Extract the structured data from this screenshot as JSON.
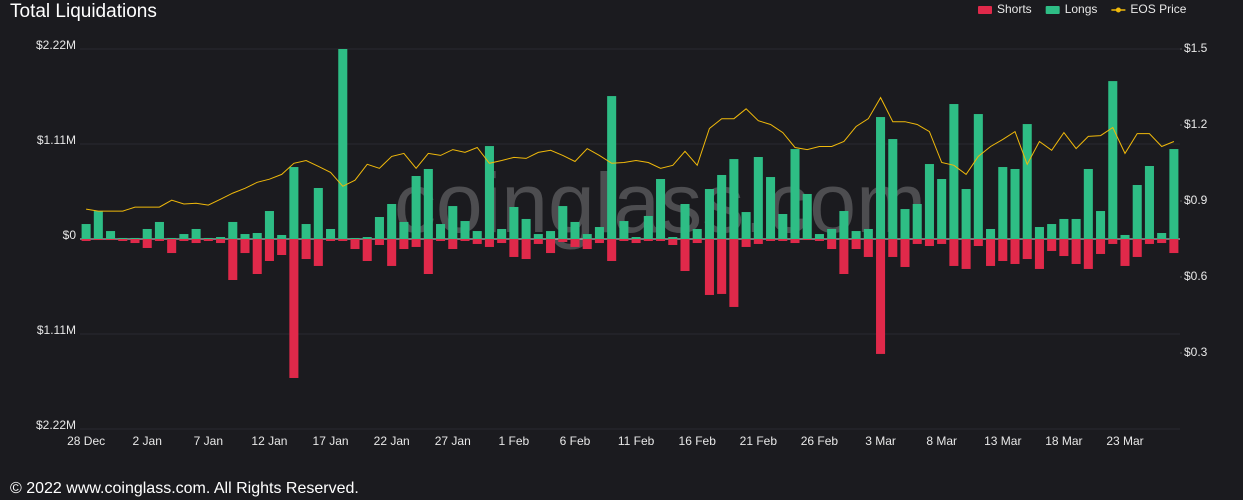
{
  "chart_data": {
    "type": "bar",
    "title": "Total Liquidations",
    "watermark": "coinglass.com",
    "footer": "© 2022 www.coinglass.com. All Rights Reserved.",
    "categories": [
      "28 Dec",
      null,
      null,
      null,
      null,
      "2 Jan",
      null,
      null,
      null,
      null,
      "7 Jan",
      null,
      null,
      null,
      null,
      "12 Jan",
      null,
      null,
      null,
      null,
      "17 Jan",
      null,
      null,
      null,
      null,
      "22 Jan",
      null,
      null,
      null,
      null,
      "27 Jan",
      null,
      null,
      null,
      null,
      "1 Feb",
      null,
      null,
      null,
      null,
      "6 Feb",
      null,
      null,
      null,
      null,
      "11 Feb",
      null,
      null,
      null,
      null,
      "16 Feb",
      null,
      null,
      null,
      null,
      "21 Feb",
      null,
      null,
      null,
      null,
      "26 Feb",
      null,
      null,
      null,
      null,
      "3 Mar",
      null,
      null,
      null,
      null,
      "8 Mar",
      null,
      null,
      null,
      null,
      "13 Mar",
      null,
      null,
      null,
      null,
      "18 Mar",
      null,
      null,
      null,
      null,
      "23 Mar",
      null,
      null,
      null,
      null
    ],
    "series": [
      {
        "name": "Shorts",
        "type": "bar",
        "color": "#e0294a",
        "values": [
          -0.023,
          -0.012,
          -0.012,
          -0.023,
          -0.047,
          -0.105,
          -0.023,
          -0.164,
          -0.023,
          -0.047,
          -0.023,
          -0.047,
          -0.479,
          -0.164,
          -0.409,
          -0.257,
          -0.187,
          -1.624,
          -0.234,
          -0.315,
          -0.023,
          -0.023,
          -0.117,
          -0.257,
          -0.07,
          -0.315,
          -0.117,
          -0.093,
          -0.409,
          -0.023,
          -0.117,
          -0.023,
          -0.058,
          -0.093,
          -0.047,
          -0.21,
          -0.234,
          -0.058,
          -0.164,
          -0.035,
          -0.093,
          -0.117,
          -0.047,
          -0.257,
          -0.023,
          -0.047,
          -0.023,
          -0.023,
          -0.07,
          -0.374,
          -0.047,
          -0.654,
          -0.642,
          -0.794,
          -0.093,
          -0.058,
          -0.023,
          -0.023,
          -0.047,
          -0.012,
          -0.023,
          -0.117,
          -0.409,
          -0.117,
          -0.21,
          -1.343,
          -0.21,
          -0.327,
          -0.058,
          -0.082,
          -0.058,
          -0.315,
          -0.35,
          -0.082,
          -0.315,
          -0.257,
          -0.292,
          -0.234,
          -0.35,
          -0.14,
          -0.199,
          -0.292,
          -0.35,
          -0.175,
          -0.058,
          -0.315,
          -0.21,
          -0.058,
          -0.047,
          -0.164
        ]
      },
      {
        "name": "Longs",
        "type": "bar",
        "color": "#2ebd85",
        "values": [
          0.175,
          0.327,
          0.093,
          0.012,
          0.012,
          0.117,
          0.199,
          0.012,
          0.058,
          0.117,
          0.012,
          0.023,
          0.199,
          0.058,
          0.07,
          0.327,
          0.047,
          0.841,
          0.175,
          0.596,
          0.117,
          2.22,
          0.012,
          0.023,
          0.257,
          0.409,
          0.199,
          0.736,
          0.818,
          0.175,
          0.385,
          0.21,
          0.093,
          1.086,
          0.117,
          0.374,
          0.234,
          0.058,
          0.093,
          0.385,
          0.199,
          0.058,
          0.14,
          1.67,
          0.21,
          0.023,
          0.269,
          0.701,
          0.023,
          0.409,
          0.117,
          0.584,
          0.748,
          0.934,
          0.315,
          0.958,
          0.724,
          0.292,
          1.051,
          0.526,
          0.058,
          0.117,
          0.327,
          0.093,
          0.117,
          1.425,
          1.168,
          0.35,
          0.409,
          0.876,
          0.701,
          1.577,
          0.584,
          1.46,
          0.117,
          0.841,
          0.818,
          1.343,
          0.14,
          0.175,
          0.234,
          0.234,
          0.818,
          0.327,
          1.845,
          0.047,
          0.631,
          0.853,
          0.07,
          1.051
        ]
      },
      {
        "name": "EOS Price",
        "type": "line",
        "axis": "y2",
        "color": "#f0b90b",
        "values": [
          0.868,
          0.86,
          0.86,
          0.86,
          0.876,
          0.876,
          0.876,
          0.903,
          0.888,
          0.891,
          0.884,
          0.907,
          0.931,
          0.95,
          0.974,
          0.986,
          1.005,
          1.049,
          1.06,
          1.037,
          1.013,
          0.958,
          0.982,
          1.045,
          1.029,
          1.076,
          1.088,
          1.029,
          1.088,
          1.08,
          1.103,
          1.092,
          1.111,
          1.049,
          1.06,
          1.072,
          1.068,
          1.092,
          1.1,
          1.08,
          1.056,
          1.107,
          1.08,
          1.049,
          1.052,
          1.06,
          1.052,
          1.029,
          1.041,
          1.096,
          1.041,
          1.186,
          1.225,
          1.225,
          1.264,
          1.217,
          1.202,
          1.17,
          1.111,
          1.103,
          1.115,
          1.115,
          1.135,
          1.194,
          1.225,
          1.308,
          1.213,
          1.213,
          1.202,
          1.174,
          1.052,
          1.041,
          1.005,
          1.076,
          1.115,
          1.143,
          1.174,
          1.045,
          1.135,
          1.1,
          1.17,
          1.107,
          1.155,
          1.158,
          1.19,
          1.088,
          1.166,
          1.166,
          1.115,
          1.135
        ]
      }
    ],
    "ylim": [
      -2.22,
      2.22
    ],
    "yticks": [
      {
        "value": -2.22,
        "label": "$2.22M"
      },
      {
        "value": -1.11,
        "label": "$1.11M"
      },
      {
        "value": 0,
        "label": "$0"
      },
      {
        "value": 1.11,
        "label": "$1.11M"
      },
      {
        "value": 2.22,
        "label": "$2.22M"
      }
    ],
    "y2lim": [
      0,
      1.5
    ],
    "y2ticks": [
      {
        "value": 0.3,
        "label": "$0.3"
      },
      {
        "value": 0.6,
        "label": "$0.6"
      },
      {
        "value": 0.9,
        "label": "$0.9"
      },
      {
        "value": 1.2,
        "label": "$1.2"
      },
      {
        "value": 1.5,
        "label": "$1.5"
      }
    ],
    "grid": true,
    "legend": "top-right"
  }
}
